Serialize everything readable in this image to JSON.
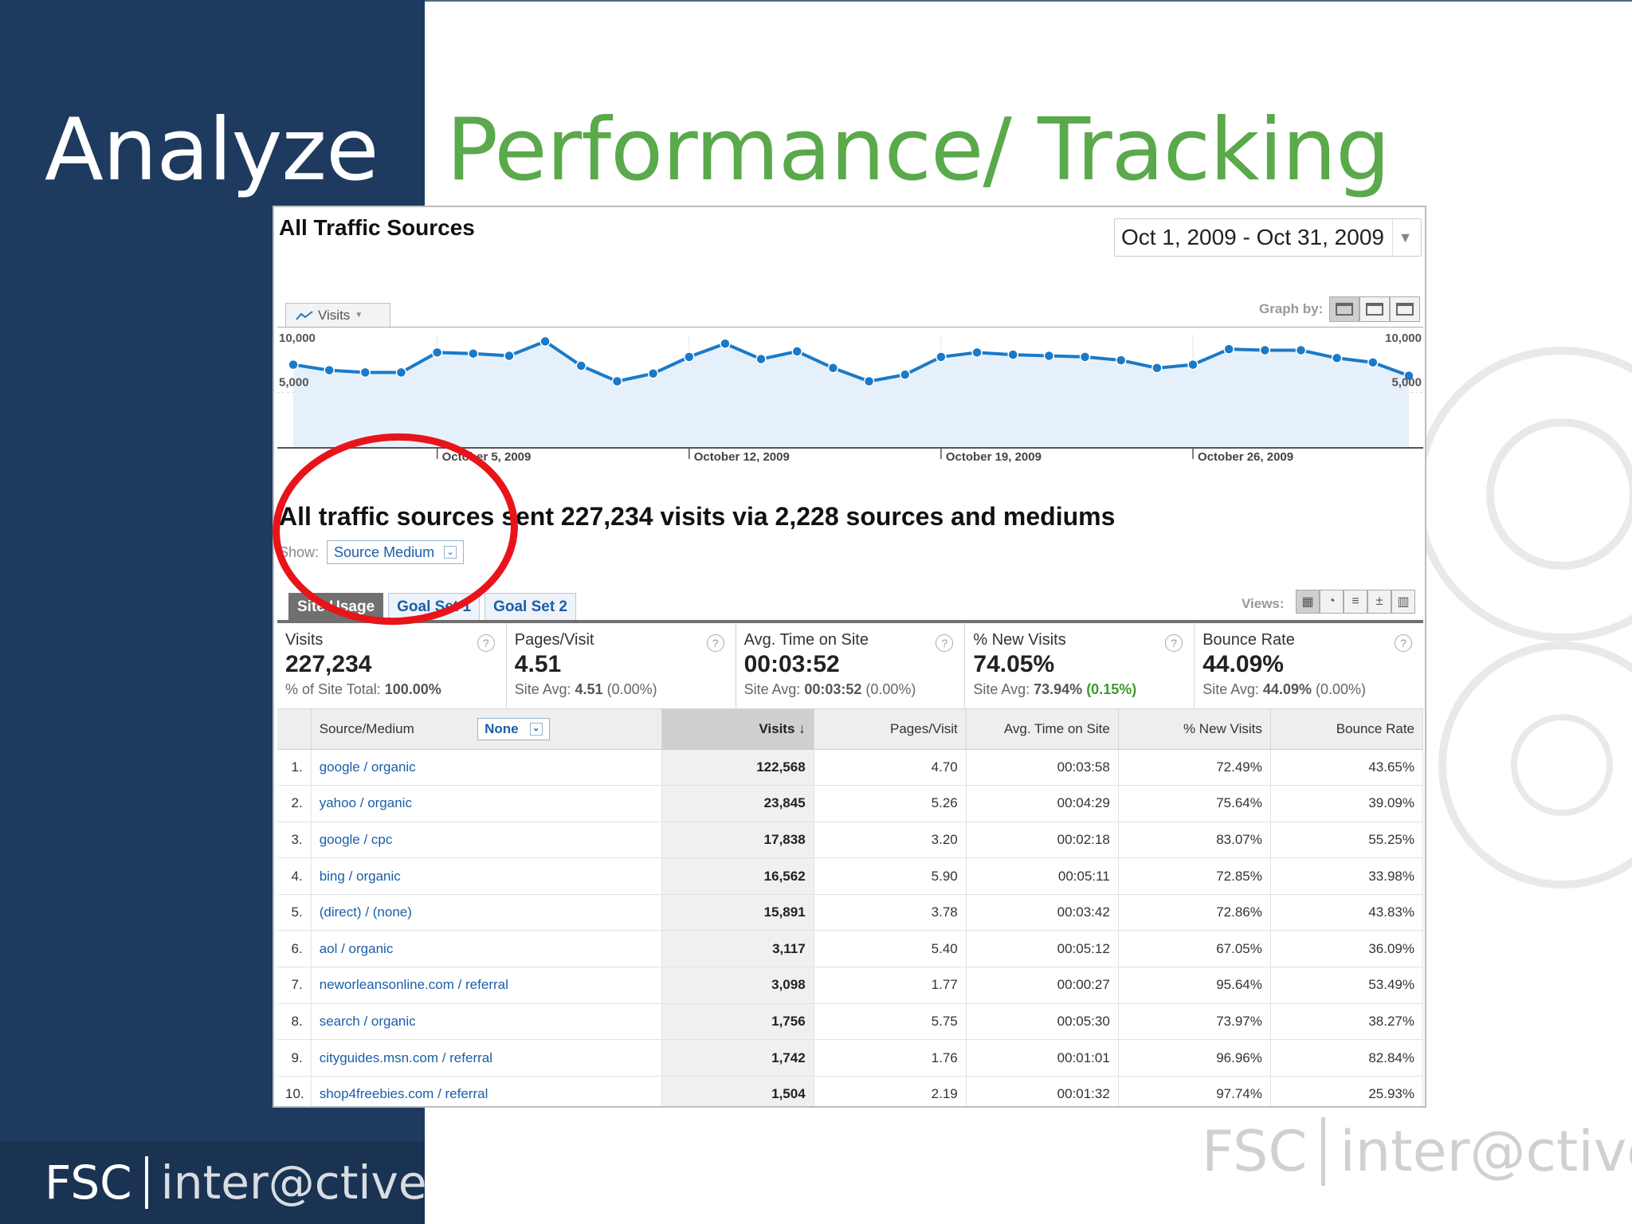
{
  "slide": {
    "title_left": "Analyze",
    "title_right": "Performance/ Tracking",
    "logo_left_a": "FSC",
    "logo_left_b": "inter@ctive",
    "logo_right_a": "FSC",
    "logo_right_b": "inter@ctive"
  },
  "report": {
    "title": "All Traffic Sources",
    "date_range": "Oct 1, 2009 - Oct 31, 2009",
    "metric_dropdown": "Visits",
    "graph_by_label": "Graph by:",
    "summary": "All traffic sources sent 227,234 visits via 2,228 sources and mediums",
    "show_label": "Show:",
    "show_value": "Source Medium",
    "tabs": [
      "Site Usage",
      "Goal Set 1",
      "Goal Set 2"
    ],
    "views_label": "Views:",
    "secondary_dimension": "None"
  },
  "chart_data": {
    "type": "area",
    "series": [
      {
        "values": [
          7500,
          7000,
          6800,
          6800,
          8600,
          8500,
          8300,
          9600,
          7400,
          6000,
          6700,
          8200,
          9400,
          8000,
          8700,
          7200,
          6000,
          6600,
          8200,
          8600,
          8400,
          8300,
          8200,
          7900,
          7200,
          7500,
          8900,
          8800,
          8800,
          8100,
          7700,
          6500
        ]
      }
    ],
    "y_ticks": [
      "10,000",
      "5,000"
    ],
    "ylim": [
      0,
      10000
    ],
    "x_tick_labels": [
      "October 5, 2009",
      "October 12, 2009",
      "October 19, 2009",
      "October 26, 2009"
    ],
    "x_tick_positions": [
      5,
      12,
      19,
      26
    ],
    "grid": true,
    "line_color": "#1a7ac9",
    "fill_color": "#e6f0fa"
  },
  "metrics": [
    {
      "label": "Visits",
      "value": "227,234",
      "sub_prefix": "% of Site Total: ",
      "sub_value": "100.00%",
      "sub_delta": ""
    },
    {
      "label": "Pages/Visit",
      "value": "4.51",
      "sub_prefix": "Site Avg: ",
      "sub_value": "4.51",
      "sub_delta": "(0.00%)"
    },
    {
      "label": "Avg. Time on Site",
      "value": "00:03:52",
      "sub_prefix": "Site Avg: ",
      "sub_value": "00:03:52",
      "sub_delta": "(0.00%)"
    },
    {
      "label": "% New Visits",
      "value": "74.05%",
      "sub_prefix": "Site Avg: ",
      "sub_value": "73.94%",
      "sub_delta": "(0.15%)"
    },
    {
      "label": "Bounce Rate",
      "value": "44.09%",
      "sub_prefix": "Site Avg: ",
      "sub_value": "44.09%",
      "sub_delta": "(0.00%)"
    }
  ],
  "table": {
    "headers": [
      "Source/Medium",
      "Visits",
      "Pages/Visit",
      "Avg. Time on Site",
      "% New Visits",
      "Bounce Rate"
    ],
    "rows": [
      {
        "idx": "1.",
        "source": "google / organic",
        "visits": "122,568",
        "ppv": "4.70",
        "time": "00:03:58",
        "new": "72.49%",
        "bounce": "43.65%"
      },
      {
        "idx": "2.",
        "source": "yahoo / organic",
        "visits": "23,845",
        "ppv": "5.26",
        "time": "00:04:29",
        "new": "75.64%",
        "bounce": "39.09%"
      },
      {
        "idx": "3.",
        "source": "google / cpc",
        "visits": "17,838",
        "ppv": "3.20",
        "time": "00:02:18",
        "new": "83.07%",
        "bounce": "55.25%"
      },
      {
        "idx": "4.",
        "source": "bing / organic",
        "visits": "16,562",
        "ppv": "5.90",
        "time": "00:05:11",
        "new": "72.85%",
        "bounce": "33.98%"
      },
      {
        "idx": "5.",
        "source": "(direct) / (none)",
        "visits": "15,891",
        "ppv": "3.78",
        "time": "00:03:42",
        "new": "72.86%",
        "bounce": "43.83%"
      },
      {
        "idx": "6.",
        "source": "aol / organic",
        "visits": "3,117",
        "ppv": "5.40",
        "time": "00:05:12",
        "new": "67.05%",
        "bounce": "36.09%"
      },
      {
        "idx": "7.",
        "source": "neworleansonline.com / referral",
        "visits": "3,098",
        "ppv": "1.77",
        "time": "00:00:27",
        "new": "95.64%",
        "bounce": "53.49%"
      },
      {
        "idx": "8.",
        "source": "search / organic",
        "visits": "1,756",
        "ppv": "5.75",
        "time": "00:05:30",
        "new": "73.97%",
        "bounce": "38.27%"
      },
      {
        "idx": "9.",
        "source": "cityguides.msn.com / referral",
        "visits": "1,742",
        "ppv": "1.76",
        "time": "00:01:01",
        "new": "96.96%",
        "bounce": "82.84%"
      },
      {
        "idx": "10.",
        "source": "shop4freebies.com / referral",
        "visits": "1,504",
        "ppv": "2.19",
        "time": "00:01:32",
        "new": "97.74%",
        "bounce": "25.93%"
      }
    ]
  },
  "colors": {
    "left_panel": "#1e3a5f",
    "title_green": "#5aa94b",
    "link_blue": "#1a5ea8",
    "highlight_circle": "#e8141a"
  }
}
